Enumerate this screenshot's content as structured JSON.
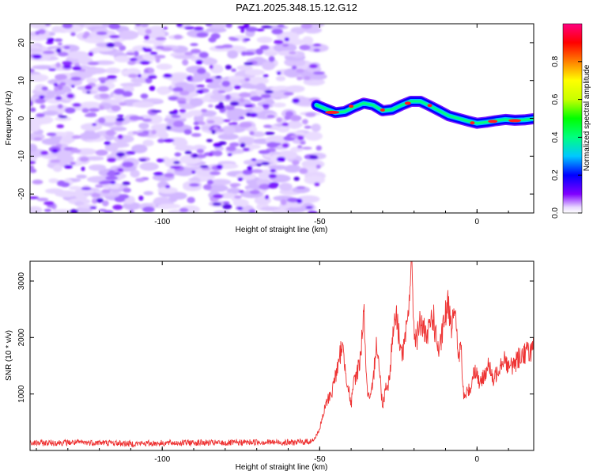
{
  "title": "PAZ1.2025.348.15.12.G12",
  "chart_data": [
    {
      "type": "heatmap",
      "title": "PAZ1.2025.348.15.12.G12",
      "xlabel": "Height of straight line (km)",
      "ylabel": "Frequency (Hz)",
      "xlim": [
        -142,
        18
      ],
      "ylim": [
        -25,
        25
      ],
      "xticks": [
        -100,
        -50,
        0
      ],
      "yticks": [
        20,
        10,
        0,
        -10,
        -20
      ],
      "noise_region_x": [
        -142,
        -50
      ],
      "signal_ridge": {
        "x": [
          -51,
          -48,
          -45,
          -42,
          -39,
          -36,
          -33,
          -30,
          -27,
          -24,
          -21,
          -18,
          -15,
          -12,
          -9,
          -6,
          -3,
          0,
          3,
          6,
          9,
          12,
          15,
          18
        ],
        "freq_hz": [
          3.5,
          2.5,
          1.5,
          1.8,
          3,
          4,
          3.5,
          2,
          2.3,
          3.5,
          4.5,
          4.5,
          3.3,
          2,
          0.7,
          0,
          -0.7,
          -1.3,
          -1,
          -0.6,
          -0.3,
          -0.5,
          -0.4,
          -0.1
        ]
      },
      "colorbar": {
        "label": "Normalized spectral amplitude",
        "range": [
          0,
          1
        ],
        "ticks": [
          "0.0",
          "0.2",
          "0.4",
          "0.6",
          "0.8"
        ]
      }
    },
    {
      "type": "line",
      "xlabel": "Height of straight line (km)",
      "ylabel": "SNR (10 * v/v)",
      "xlim": [
        -142,
        18
      ],
      "ylim": [
        0,
        3350
      ],
      "xticks": [
        -100,
        -50,
        0
      ],
      "yticks": [
        1000,
        2000,
        3000
      ],
      "series": [
        {
          "name": "SNR",
          "color": "#ee3333",
          "x": [
            -142,
            -130,
            -120,
            -110,
            -100,
            -90,
            -80,
            -70,
            -60,
            -55,
            -52,
            -50,
            -49,
            -48,
            -47,
            -46,
            -45,
            -44,
            -43,
            -42,
            -41,
            -40,
            -39,
            -38,
            -37,
            -36,
            -35,
            -34,
            -33,
            -32,
            -31,
            -30,
            -29,
            -28,
            -27,
            -26,
            -25,
            -24,
            -23,
            -22,
            -21,
            -20.5,
            -20,
            -19,
            -18,
            -17,
            -16,
            -15,
            -14,
            -13,
            -12,
            -11,
            -10,
            -9,
            -8,
            -7.5,
            -7,
            -6,
            -5,
            -4.5,
            -4,
            -3,
            -2,
            -1,
            0,
            1,
            2,
            3,
            4,
            5,
            6,
            7,
            8,
            9,
            10,
            12,
            14,
            16,
            18
          ],
          "y": [
            130,
            140,
            140,
            120,
            130,
            140,
            130,
            150,
            140,
            150,
            170,
            380,
            600,
            820,
            950,
            1050,
            1350,
            1480,
            1900,
            1520,
            1150,
            800,
            1250,
            1400,
            1650,
            2550,
            1100,
            860,
            1200,
            2000,
            1400,
            780,
            1150,
            1200,
            1900,
            2450,
            2150,
            1700,
            1850,
            2350,
            3250,
            2900,
            2100,
            2000,
            2300,
            2150,
            1900,
            2250,
            2400,
            2000,
            1700,
            2100,
            2400,
            2600,
            2200,
            2650,
            2400,
            1700,
            1800,
            1050,
            950,
            1050,
            1100,
            1450,
            1350,
            1150,
            1300,
            1450,
            1500,
            1200,
            1350,
            1500,
            1600,
            1650,
            1450,
            1550,
            1700,
            1750,
            1800
          ]
        }
      ]
    }
  ]
}
